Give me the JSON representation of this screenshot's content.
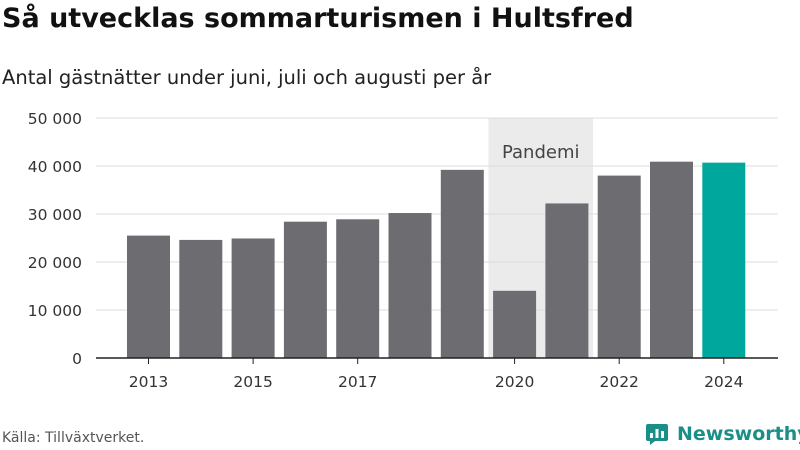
{
  "title": "Så utvecklas sommarturismen i Hultsfred",
  "subtitle": "Antal gästnätter under juni, juli och augusti per år",
  "source": "Källa: Tillväxtverket.",
  "brand": {
    "name": "Newsworthy",
    "icon": "newsworthy-logo-icon",
    "color": "#1a8f88"
  },
  "colors": {
    "bar": "#6d6c71",
    "highlight": "#00a79d",
    "band": "#ebebeb",
    "grid": "#dddddd",
    "axis": "#222222"
  },
  "chart_data": {
    "type": "bar",
    "categories": [
      "2013",
      "2014",
      "2015",
      "2016",
      "2017",
      "2018",
      "2019",
      "2020",
      "2021",
      "2022",
      "2023",
      "2024"
    ],
    "values": [
      25500,
      24600,
      24900,
      28400,
      28900,
      30200,
      39200,
      14000,
      32200,
      38000,
      40900,
      40700
    ],
    "highlight_category": "2024",
    "x_tick_labels": [
      "2013",
      "2015",
      "2017",
      "2020",
      "2022",
      "2024"
    ],
    "y_tick_values": [
      0,
      10000,
      20000,
      30000,
      40000,
      50000
    ],
    "y_tick_labels": [
      "0",
      "10 000",
      "20 000",
      "30 000",
      "40 000",
      "50 000"
    ],
    "ylim": [
      0,
      50000
    ],
    "grid": true,
    "annotation": {
      "label": "Pandemi",
      "from": "2020",
      "to": "2021"
    }
  }
}
